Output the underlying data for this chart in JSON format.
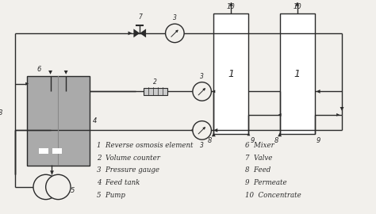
{
  "bg_color": "#f2f0ec",
  "line_color": "#2a2a2a",
  "box_fill": "#aaaaaa",
  "white_fill": "#ffffff",
  "legend_items_left": [
    "1  Reverse osmosis element",
    "2  Volume counter",
    "3  Pressure gauge",
    "4  Feed tank",
    "5  Pump"
  ],
  "legend_items_right": [
    "6  Mixer",
    "7  Valve",
    "8  Feed",
    "9  Permeate",
    "10  Concentrate"
  ]
}
